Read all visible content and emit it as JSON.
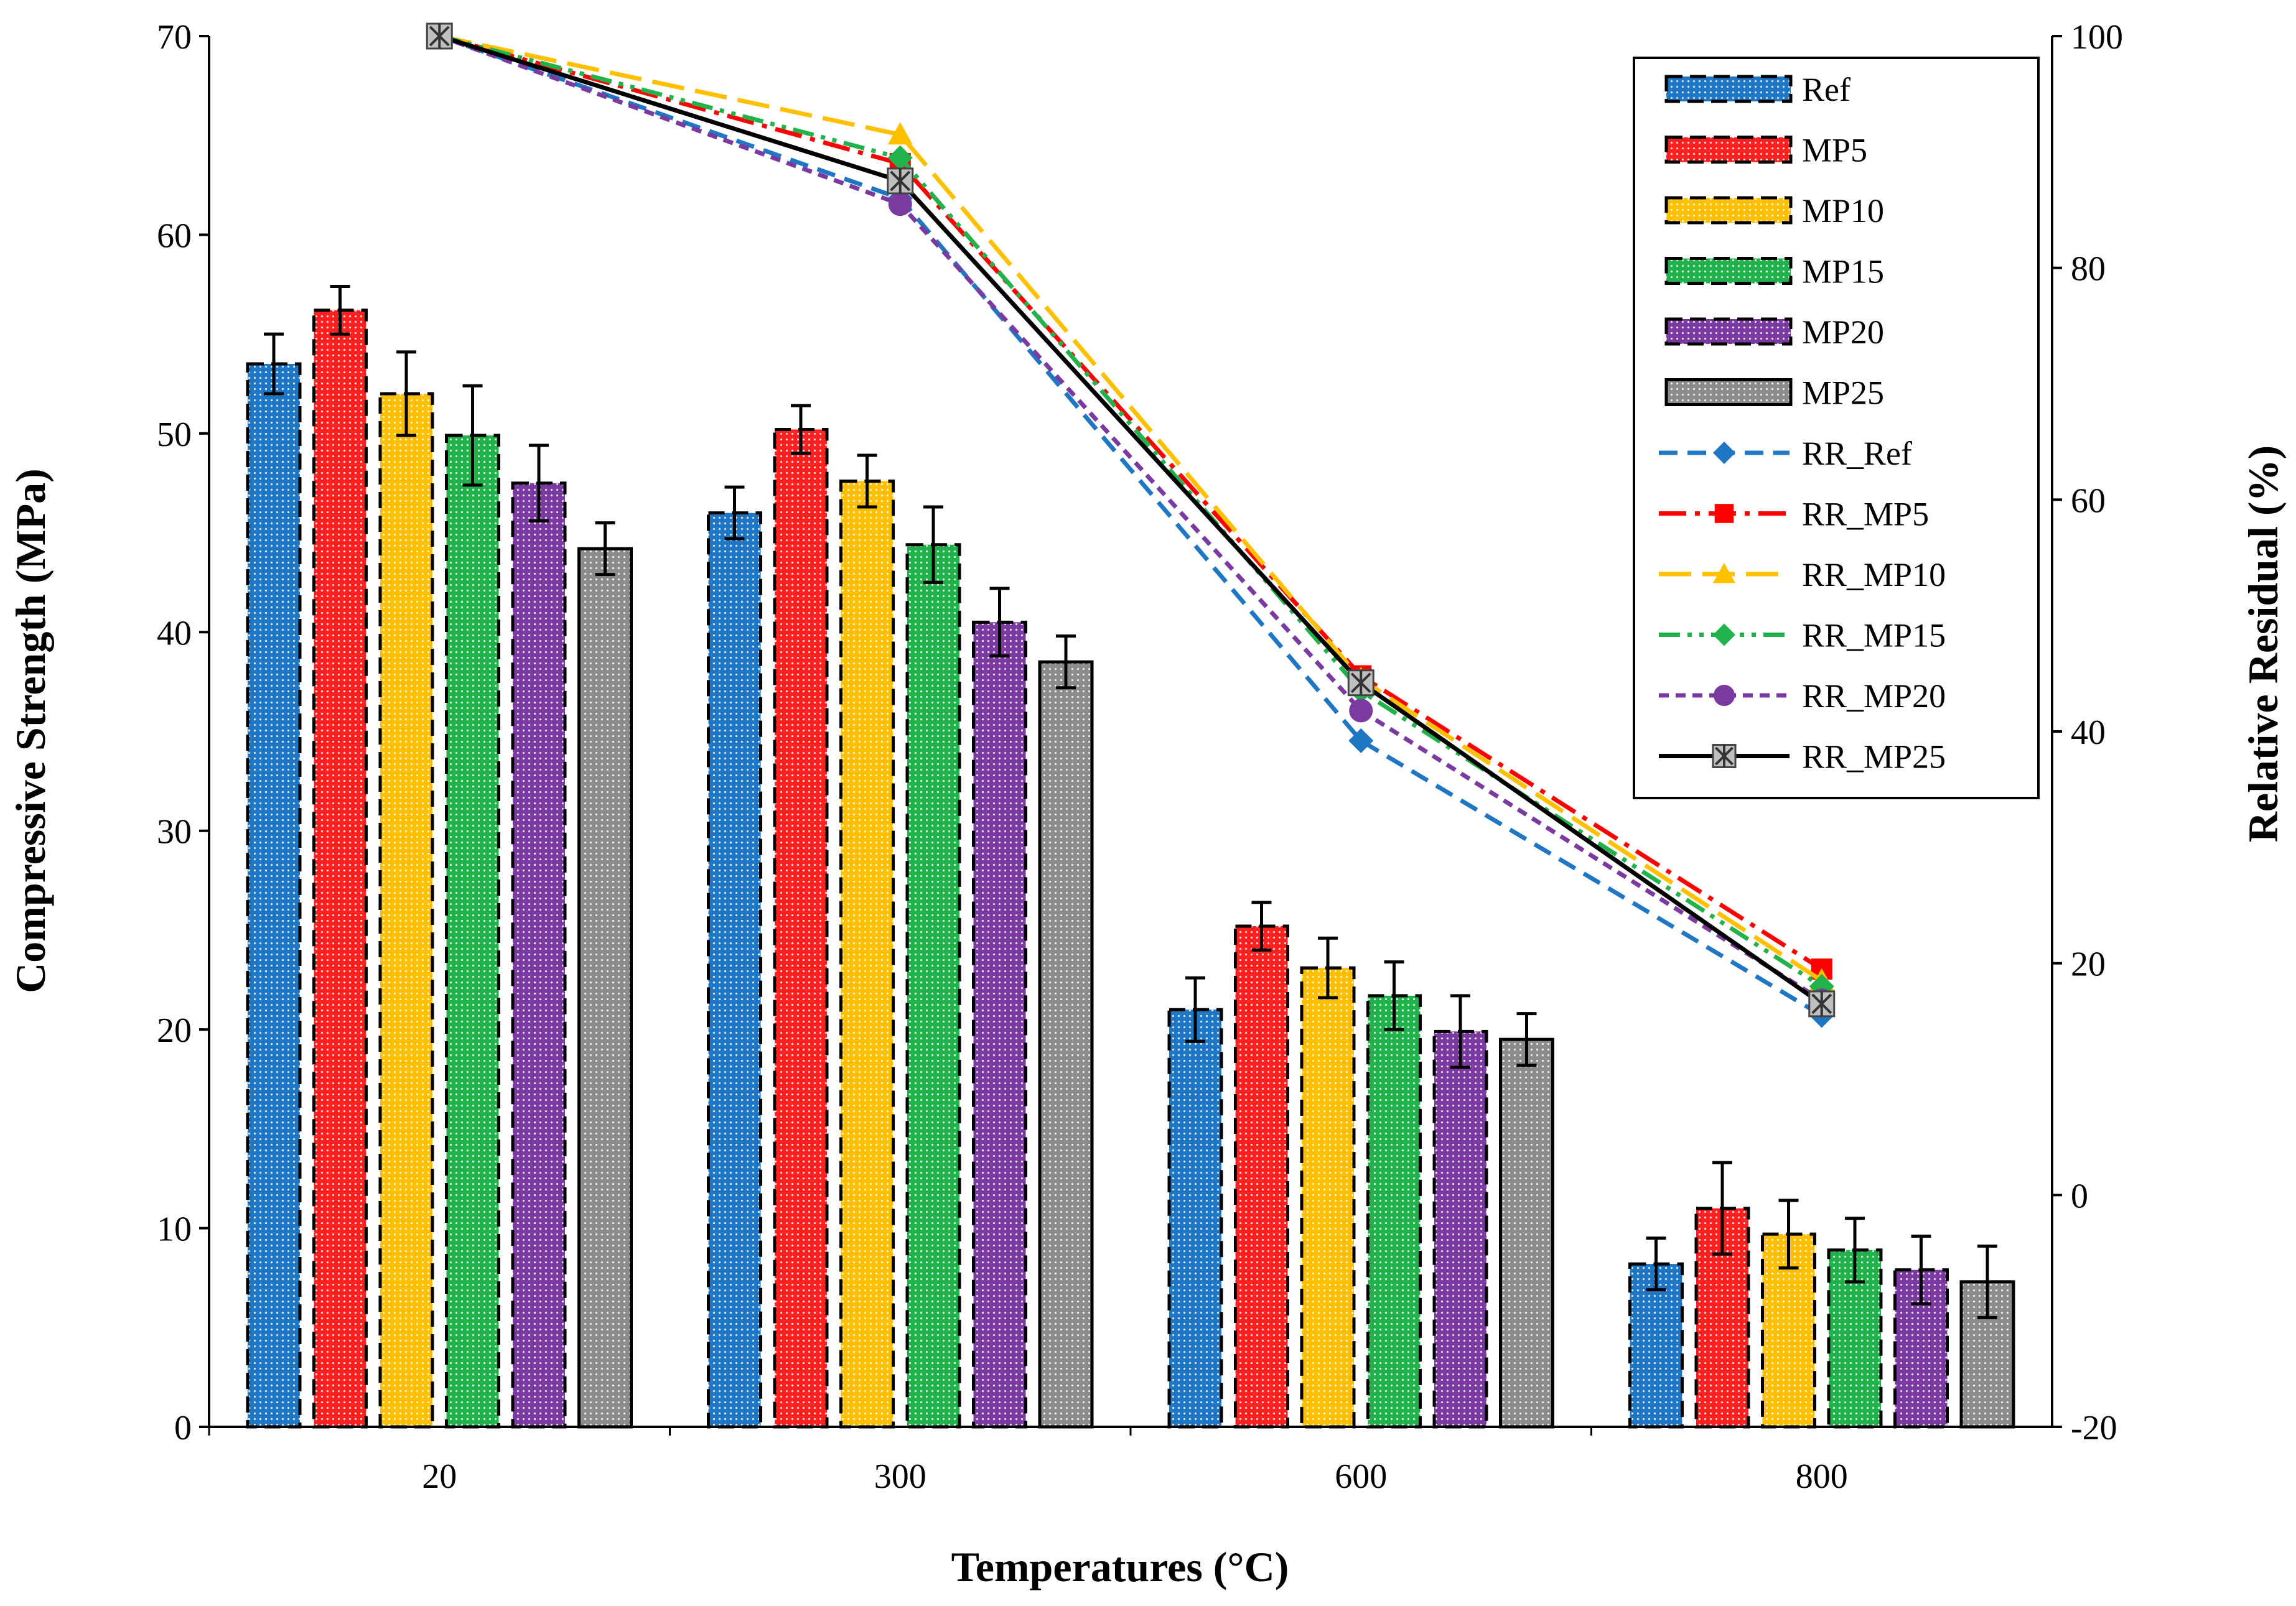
{
  "chart_data": {
    "type": "bar",
    "categories": [
      "20",
      "300",
      "600",
      "800"
    ],
    "xlabel": "Temperatures (°C)",
    "ylabel": "Compressive Strength (MPa)",
    "ylabel_right": "Relative Residual (%)",
    "ylim": [
      0,
      70
    ],
    "yticks": [
      "0",
      "10",
      "20",
      "30",
      "40",
      "50",
      "60",
      "70"
    ],
    "ylim_right": [
      -20,
      100
    ],
    "yticks_right": [
      "-20",
      "0",
      "20",
      "40",
      "60",
      "80",
      "100"
    ],
    "series": [
      {
        "name": "Ref",
        "color": "#1f77c4",
        "values": [
          53.5,
          46.0,
          21.0,
          8.2
        ],
        "errors": [
          1.5,
          1.3,
          1.6,
          1.3
        ]
      },
      {
        "name": "MP5",
        "color": "#ff2020",
        "values": [
          56.2,
          50.2,
          25.2,
          11.0
        ],
        "errors": [
          1.2,
          1.2,
          1.2,
          2.3
        ]
      },
      {
        "name": "MP10",
        "color": "#ffc000",
        "values": [
          52.0,
          47.6,
          23.1,
          9.7
        ],
        "errors": [
          2.1,
          1.3,
          1.5,
          1.7
        ]
      },
      {
        "name": "MP15",
        "color": "#22b24c",
        "values": [
          49.9,
          44.4,
          21.7,
          8.9
        ],
        "errors": [
          2.5,
          1.9,
          1.7,
          1.6
        ]
      },
      {
        "name": "MP20",
        "color": "#7a3aa0",
        "values": [
          47.5,
          40.5,
          19.9,
          7.9
        ],
        "errors": [
          1.9,
          1.7,
          1.8,
          1.7
        ]
      },
      {
        "name": "MP25",
        "color": "#8c8c8c",
        "values": [
          44.2,
          38.5,
          19.5,
          7.3
        ],
        "errors": [
          1.3,
          1.3,
          1.3,
          1.8
        ]
      }
    ],
    "line_series": [
      {
        "name": "RR_Ref",
        "color": "#1f77c4",
        "marker": "diamond",
        "dash": "dash",
        "values": [
          100,
          86.0,
          39.2,
          15.5
        ]
      },
      {
        "name": "RR_MP5",
        "color": "#ff0000",
        "marker": "square",
        "dash": "longdashdot",
        "values": [
          100,
          89.0,
          44.8,
          19.5
        ]
      },
      {
        "name": "RR_MP10",
        "color": "#ffc000",
        "marker": "triangle",
        "dash": "longdash",
        "values": [
          100,
          91.5,
          44.5,
          18.5
        ]
      },
      {
        "name": "RR_MP15",
        "color": "#22b24c",
        "marker": "diamond",
        "dash": "dashdotdot",
        "values": [
          100,
          89.5,
          43.5,
          18.0
        ]
      },
      {
        "name": "RR_MP20",
        "color": "#7a3aa0",
        "marker": "circle",
        "dash": "shortdash",
        "values": [
          100,
          85.5,
          41.8,
          16.8
        ]
      },
      {
        "name": "RR_MP25",
        "color": "#000000",
        "marker": "star",
        "dash": "solid",
        "values": [
          100,
          87.5,
          44.2,
          16.5
        ]
      }
    ],
    "legend_position": "top-right",
    "grid": false
  }
}
